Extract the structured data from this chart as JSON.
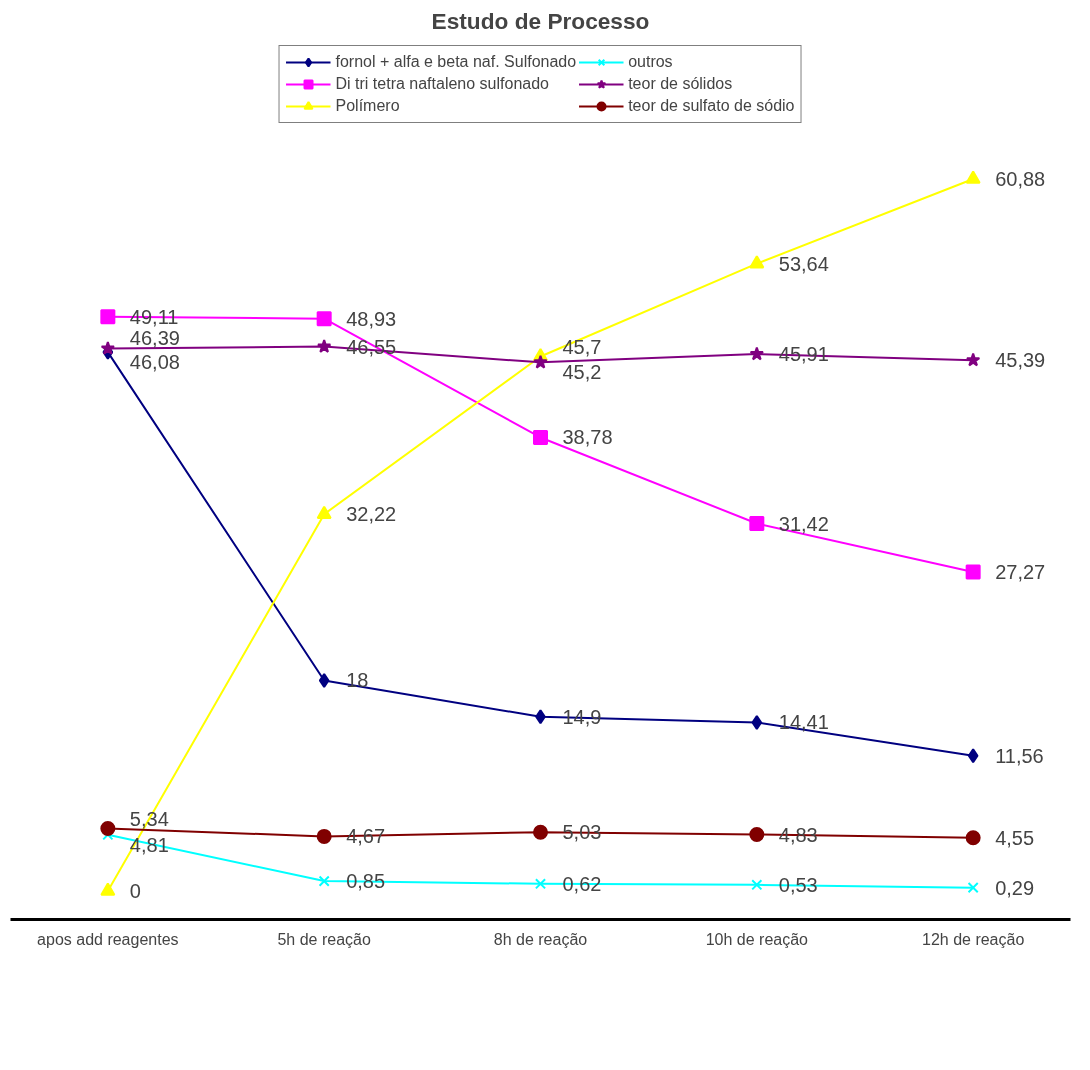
{
  "chart_data": {
    "type": "line",
    "title": "Estudo de Processo",
    "categories": [
      "apos add reagentes",
      "5h de reação",
      "8h de reação",
      "10h de reação",
      "12h de reação"
    ],
    "series": [
      {
        "name": "fornol + alfa e beta naf. Sulfonado",
        "color": "#000080",
        "marker": "diamond",
        "values": [
          46.08,
          18,
          14.9,
          14.41,
          11.56
        ],
        "value_labels": [
          "46,08",
          "18",
          "14,9",
          "14,41",
          "11,56"
        ]
      },
      {
        "name": "Di tri tetra naftaleno sulfonado",
        "color": "#ff00ff",
        "marker": "square",
        "values": [
          49.11,
          48.93,
          38.78,
          31.42,
          27.27
        ],
        "value_labels": [
          "49,11",
          "48,93",
          "38,78",
          "31,42",
          "27,27"
        ]
      },
      {
        "name": "Polímero",
        "color": "#ffff00",
        "marker": "triangle",
        "values": [
          0,
          32.22,
          45.7,
          53.64,
          60.88
        ],
        "value_labels": [
          "0",
          "32,22",
          "45,7",
          "53,64",
          "60,88"
        ]
      },
      {
        "name": "outros",
        "color": "#00ffff",
        "marker": "cross",
        "values": [
          4.81,
          0.85,
          0.62,
          0.53,
          0.29
        ],
        "value_labels": [
          "4,81",
          "0,85",
          "0,62",
          "0,53",
          "0,29"
        ]
      },
      {
        "name": "teor de sólidos",
        "color": "#800080",
        "marker": "star",
        "values": [
          46.39,
          46.55,
          45.2,
          45.91,
          45.39
        ],
        "value_labels": [
          "46,39",
          "46,55",
          "45,2",
          "45,91",
          "45,39"
        ]
      },
      {
        "name": "teor de sulfato de sódio",
        "color": "#800000",
        "marker": "circle",
        "values": [
          5.34,
          4.67,
          5.03,
          4.83,
          4.55
        ],
        "value_labels": [
          "5,34",
          "4,67",
          "5,03",
          "4,83",
          "4,55"
        ]
      }
    ],
    "legend": "top",
    "tick_labels": "x",
    "line_style": "solid"
  }
}
